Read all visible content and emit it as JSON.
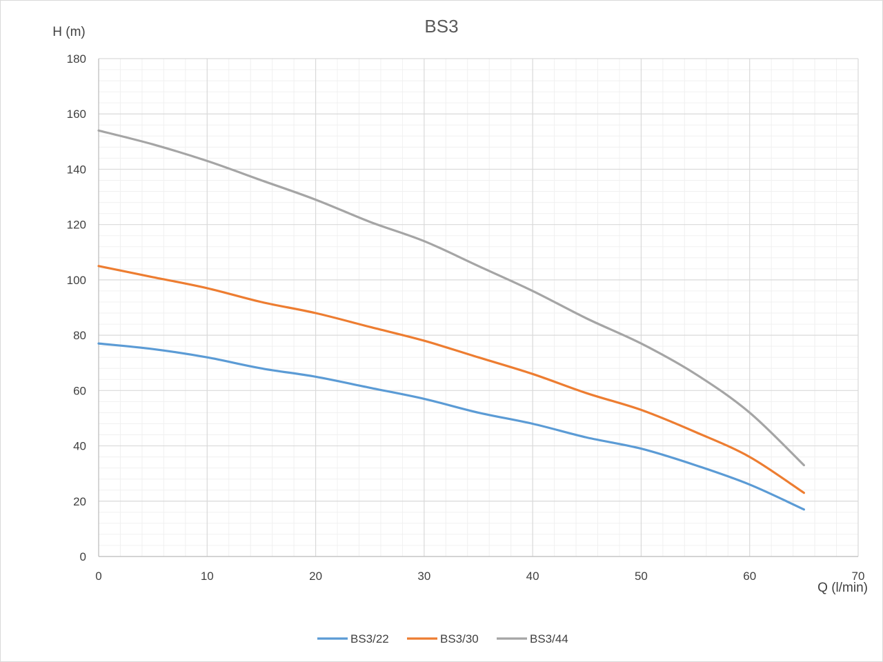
{
  "chart_data": {
    "type": "line",
    "title": "BS3",
    "xlabel": "Q (l/min)",
    "ylabel": "H (m)",
    "xlim": [
      0,
      70
    ],
    "ylim": [
      0,
      180
    ],
    "x_ticks": [
      0,
      10,
      20,
      30,
      40,
      50,
      60,
      70
    ],
    "y_ticks": [
      0,
      20,
      40,
      60,
      80,
      100,
      120,
      140,
      160,
      180
    ],
    "grid": "major and minor",
    "legend_position": "bottom",
    "series": [
      {
        "name": "BS3/22",
        "color": "#5b9bd5",
        "points": [
          [
            0,
            77
          ],
          [
            5,
            75
          ],
          [
            10,
            72
          ],
          [
            15,
            68
          ],
          [
            20,
            65
          ],
          [
            25,
            61
          ],
          [
            30,
            57
          ],
          [
            35,
            52
          ],
          [
            40,
            48
          ],
          [
            45,
            43
          ],
          [
            50,
            39
          ],
          [
            55,
            33
          ],
          [
            60,
            26
          ],
          [
            65,
            17
          ]
        ]
      },
      {
        "name": "BS3/30",
        "color": "#ed7d31",
        "points": [
          [
            0,
            105
          ],
          [
            5,
            101
          ],
          [
            10,
            97
          ],
          [
            15,
            92
          ],
          [
            20,
            88
          ],
          [
            25,
            83
          ],
          [
            30,
            78
          ],
          [
            35,
            72
          ],
          [
            40,
            66
          ],
          [
            45,
            59
          ],
          [
            50,
            53
          ],
          [
            55,
            45
          ],
          [
            60,
            36
          ],
          [
            65,
            23
          ]
        ]
      },
      {
        "name": "BS3/44",
        "color": "#a5a5a5",
        "points": [
          [
            0,
            154
          ],
          [
            5,
            149
          ],
          [
            10,
            143
          ],
          [
            15,
            136
          ],
          [
            20,
            129
          ],
          [
            25,
            121
          ],
          [
            30,
            114
          ],
          [
            35,
            105
          ],
          [
            40,
            96
          ],
          [
            45,
            86
          ],
          [
            50,
            77
          ],
          [
            55,
            66
          ],
          [
            60,
            52
          ],
          [
            65,
            33
          ]
        ]
      }
    ]
  }
}
